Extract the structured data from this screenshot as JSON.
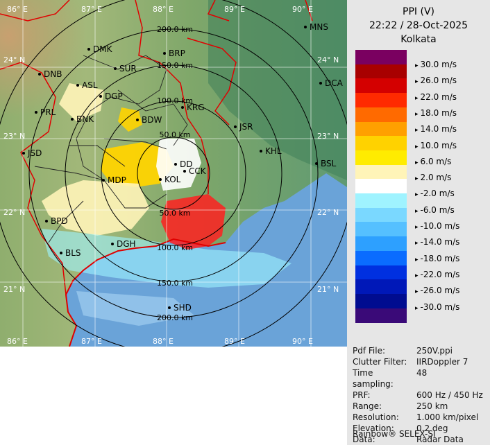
{
  "header": {
    "product": "PPI (V)",
    "datetime": "22:22 / 28-Oct-2025",
    "station": "Kolkata"
  },
  "legend": {
    "colors": [
      "#7a0060",
      "#a80000",
      "#d40000",
      "#ff2a00",
      "#ff6a00",
      "#ffa000",
      "#ffd200",
      "#ffec00",
      "#fff4b8",
      "#ffffff",
      "#9ff3ff",
      "#7ad8ff",
      "#55c0ff",
      "#2da0ff",
      "#0a6cff",
      "#0030e0",
      "#0018b8",
      "#000c90",
      "#3a0a78"
    ],
    "labels": [
      "30.0 m/s",
      "26.0 m/s",
      "22.0 m/s",
      "18.0 m/s",
      "14.0 m/s",
      "10.0 m/s",
      "6.0 m/s",
      "2.0 m/s",
      "-2.0 m/s",
      "-6.0 m/s",
      "-10.0 m/s",
      "-14.0 m/s",
      "-18.0 m/s",
      "-22.0 m/s",
      "-26.0 m/s",
      "-30.0 m/s"
    ]
  },
  "map": {
    "lon_labels": [
      "86° E",
      "87° E",
      "88° E",
      "89° E",
      "90° E"
    ],
    "lat_labels": [
      "24° N",
      "23° N",
      "22° N",
      "21° N"
    ],
    "range_labels": [
      "50.0 km",
      "100.0 km",
      "150.0 km",
      "200.0 km"
    ],
    "cities": [
      "DMK",
      "BRP",
      "MNS",
      "DNB",
      "SUR",
      "ASL",
      "DCA",
      "DGP",
      "PRL",
      "KRG",
      "BNK",
      "BDW",
      "JSR",
      "KHL",
      "JSD",
      "DD",
      "CCK",
      "BSL",
      "MDP",
      "KOL",
      "BPD",
      "DGH",
      "BLS",
      "SHD"
    ]
  },
  "meta": {
    "rows": [
      {
        "key": "Pdf File:",
        "value": "250V.ppi"
      },
      {
        "key": "Clutter Filter:",
        "value": "IIRDoppler 7"
      },
      {
        "key": "Time sampling:",
        "value": "48"
      },
      {
        "key": "PRF:",
        "value": "600 Hz / 450 Hz"
      },
      {
        "key": "Range:",
        "value": "250 km"
      },
      {
        "key": "Resolution:",
        "value": "1.000 km/pixel"
      },
      {
        "key": "Elevation:",
        "value": "0.2 deg"
      },
      {
        "key": "Data:",
        "value": "Radar Data"
      }
    ],
    "footer": "Rainbow® SELEX-SI"
  }
}
